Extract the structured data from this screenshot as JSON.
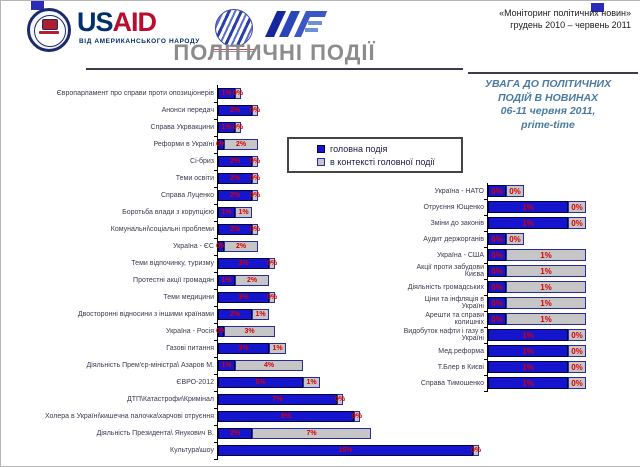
{
  "slide": {
    "logos": {
      "usaid_us": "US",
      "usaid_aid": "AID",
      "usaid_tagline": "ВІД АМЕРИКАНСЬКОГО НАРОДУ"
    },
    "monitoring_note": "«Моніторинг політичних новин»\nгрудень 2010 – червень 2011",
    "title": "ПОЛІТИЧНІ ПОДІЇ",
    "right_heading": "УВАГА ДО ПОЛІТИЧНИХ\nПОДІЙ В НОВИНАХ\n06-11 червня 2011,\nprime-time"
  },
  "colors": {
    "main_bar": "#1515CE",
    "context_bar": "#C6C6C6",
    "value_label": "#D80000",
    "heading_blue": "#4A7AA2",
    "title_gray": "#8C8C8C",
    "usaid_blue": "#002F6C",
    "usaid_red": "#BA0C2F"
  },
  "chart_data": [
    {
      "type": "bar",
      "orientation": "horizontal-stacked",
      "unit": "%",
      "value_labels": "inside segments, red",
      "legend_position": "floating box upper right of plot",
      "categories": [
        "Європарламент про справи проти опозиціонерів",
        "Анонси передач",
        "Справа Укрвакцини",
        "Реформи в Україні",
        "Сі-бриз",
        "Теми освіти",
        "Справа Луценко",
        "Боротьба влади з корупцією",
        "Комунальні\\соціальні проблеми",
        "Україна - ЄС",
        "Теми відпочинку, туризму",
        "Протестні акції громадян",
        "Теми медицини",
        "Двосторонні відносини з іншими країнами",
        "Україна - Росія",
        "Газові питання",
        "Діяльність Прем'єр-міністра\\ Азаров М.",
        "ЄВРО-2012",
        "ДТП\\Катастрофи\\Кримінал",
        "Холера в Україні\\кишечна палочка\\харчові отруєння",
        "Діяльність Президента\\ Янукович В.",
        "Культура\\шоу"
      ],
      "series": [
        {
          "name": "головна подія",
          "color": "#1515CE",
          "values": [
            1,
            2,
            1,
            0,
            2,
            2,
            2,
            1,
            2,
            0,
            3,
            1,
            3,
            2,
            0,
            3,
            1,
            5,
            7,
            8,
            2,
            15
          ]
        },
        {
          "name": "в контексті головної події",
          "color": "#C6C6C6",
          "values": [
            0,
            0,
            0,
            2,
            0,
            0,
            0,
            1,
            0,
            2,
            0,
            2,
            0,
            1,
            3,
            1,
            4,
            1,
            0,
            0,
            7,
            0
          ]
        }
      ]
    },
    {
      "type": "bar",
      "orientation": "horizontal-stacked",
      "unit": "%",
      "value_labels": "inside segments, red",
      "categories": [
        "Україна - НАТО",
        "Отруєння Ющенко",
        "Зміни до законів",
        "Аудит держорганів",
        "Україна - США",
        "Акції проти забудови Києва",
        "Діяльність громадських",
        "Ціни та інфляція в Україні",
        "Арешти та справи колишніх",
        "Видобуток нафти і газу в Україні",
        "Мед.реформа",
        "Т.Блер в Києві",
        "Справа Тимошенко"
      ],
      "series": [
        {
          "name": "головна подія",
          "color": "#1515CE",
          "values": [
            0,
            1,
            1,
            0,
            0,
            0,
            0,
            0,
            0,
            1,
            1,
            1,
            1
          ]
        },
        {
          "name": "в контексті головної події",
          "color": "#C6C6C6",
          "values": [
            0,
            0,
            0,
            0,
            1,
            1,
            1,
            1,
            1,
            0,
            0,
            0,
            0
          ]
        }
      ]
    }
  ]
}
